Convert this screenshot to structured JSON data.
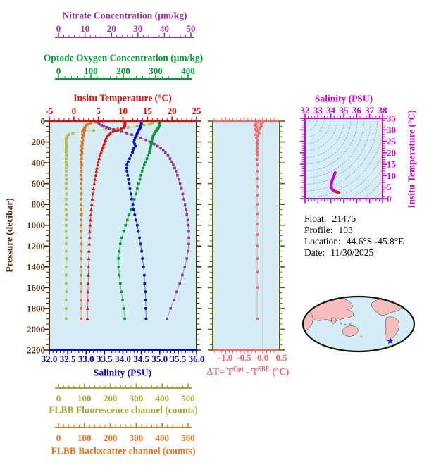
{
  "colors": {
    "nitrate": "#993399",
    "oxygen": "#009933",
    "temperature": "#EE0000",
    "pressure": "#4F2A0A",
    "salinity": "#0000CC",
    "delta": "#F06A6A",
    "delta_frame": "#5C5C00",
    "delta_zeroline": "#C8C8C8",
    "ts": "#CC00CC",
    "fluorescence": "#A6A632",
    "fluorescence_curve": "#B8B83A",
    "backscatter": "#E2711C",
    "plot_bg": "#D5EDF5",
    "isopycnal": "#8FA0AC",
    "land": "#F5BDBB",
    "ocean": "#D5EDF5",
    "map_outline": "#111111",
    "star": "#1414CC",
    "info_text": "#000000"
  },
  "axes": {
    "nitrate": {
      "title": "Nitrate Concentration (μm/kg)",
      "ticks": [
        "0",
        "10",
        "20",
        "30",
        "40",
        "50"
      ]
    },
    "oxygen": {
      "title": "Optode Oxygen Concentration (μm/kg)",
      "ticks": [
        "0",
        "100",
        "200",
        "300",
        "400"
      ]
    },
    "temperature": {
      "title": "Insitu Temperature (°C)",
      "ticks": [
        "-5",
        "0",
        "5",
        "10",
        "15",
        "20",
        "25"
      ]
    },
    "pressure": {
      "title": "Pressure (decibar)",
      "ticks": [
        "0",
        "200",
        "400",
        "600",
        "800",
        "1000",
        "1200",
        "1400",
        "1600",
        "1800",
        "2000",
        "2200"
      ]
    },
    "salinity": {
      "title": "Salinity (PSU)",
      "ticks": [
        "32.0",
        "32.5",
        "33.0",
        "33.5",
        "34.0",
        "34.5",
        "35.0",
        "35.5",
        "36.0"
      ]
    },
    "fluorescence": {
      "title": "FLBB Fluorescence channel (counts)",
      "ticks": [
        "0",
        "100",
        "200",
        "300",
        "400",
        "500"
      ]
    },
    "backscatter": {
      "title": "FLBB Backscatter channel (counts)",
      "ticks": [
        "0",
        "100",
        "200",
        "300",
        "400",
        "500"
      ]
    },
    "delta": {
      "ticks": [
        "-1.0",
        "-0.5",
        "0.0",
        "0.5"
      ],
      "title_parts": {
        "pre": "ΔT= T",
        "sup1": "Opt",
        "mid": " - T",
        "sup2": "SBE",
        "post": " (°C)"
      }
    },
    "ts_top": {
      "title": "Salinity (PSU)",
      "ticks": [
        "32",
        "33",
        "34",
        "35",
        "36",
        "37",
        "38"
      ]
    },
    "ts_right": {
      "title": "Insitu Temperature (°C)",
      "ticks": [
        "0",
        "5",
        "10",
        "15",
        "20",
        "25",
        "30",
        "35"
      ]
    }
  },
  "info": {
    "rows": [
      {
        "label": "Float:",
        "value": "21475"
      },
      {
        "label": "Profile:",
        "value": "103"
      },
      {
        "label": "Location:",
        "value": "44.6°S  -45.8°E"
      },
      {
        "label": "Date:",
        "value": "11/30/2025"
      }
    ]
  },
  "chart_data": [
    {
      "id": "main-profile",
      "type": "line",
      "ylabel": "Pressure (decibar)",
      "ylim": [
        0,
        2200
      ],
      "grid": false,
      "pressures": [
        0,
        10,
        20,
        30,
        40,
        50,
        60,
        70,
        80,
        90,
        100,
        115,
        130,
        145,
        160,
        180,
        200,
        220,
        240,
        260,
        280,
        300,
        330,
        360,
        390,
        420,
        450,
        480,
        520,
        560,
        600,
        650,
        700,
        750,
        800,
        850,
        900,
        950,
        1000,
        1060,
        1120,
        1180,
        1250,
        1320,
        1400,
        1480,
        1560,
        1640,
        1720,
        1800,
        1900
      ],
      "series": [
        {
          "name": "FLBB Fluorescence channel",
          "units": "counts",
          "color": "#B8B83A",
          "marker": "square",
          "xlim": [
            0,
            500
          ],
          "values": [
            348,
            352,
            349,
            340,
            322,
            298,
            268,
            232,
            192,
            150,
            112,
            80,
            65,
            60,
            58,
            57,
            57,
            57,
            58,
            57,
            57,
            57,
            58,
            57,
            57,
            58,
            57,
            57,
            57,
            58,
            57,
            57,
            58,
            57,
            57,
            57,
            58,
            57,
            57,
            57,
            58,
            57,
            57,
            58,
            57,
            57,
            57,
            58,
            57,
            57,
            57
          ]
        },
        {
          "name": "FLBB Backscatter channel",
          "units": "counts",
          "color": "#E2711C",
          "marker": "square",
          "xlim": [
            0,
            500
          ],
          "values": [
            182,
            158,
            140,
            130,
            126,
            124,
            121,
            119,
            117,
            120,
            115,
            118,
            113,
            116,
            112,
            114,
            111,
            113,
            110,
            112,
            109,
            111,
            109,
            110,
            108,
            110,
            108,
            109,
            108,
            109,
            108,
            108,
            109,
            108,
            108,
            108,
            109,
            108,
            108,
            108,
            108,
            109,
            108,
            108,
            108,
            108,
            108,
            108,
            108,
            108,
            108
          ]
        },
        {
          "name": "Nitrate Concentration",
          "units": "μm/kg",
          "color": "#993399",
          "marker": "square",
          "xlim": [
            0,
            50
          ],
          "values": [
            16.5,
            16.6,
            16.8,
            17.2,
            17.8,
            18.5,
            19.4,
            20.5,
            21.8,
            23.2,
            24.5,
            26.3,
            28,
            29.6,
            31,
            32.8,
            34.3,
            35.6,
            36.8,
            37.8,
            38.7,
            39.4,
            40.3,
            41,
            41.6,
            42.1,
            42.6,
            43,
            43.5,
            44,
            44.4,
            44.9,
            45.3,
            45.7,
            46.1,
            46.4,
            46.7,
            47,
            47.2,
            47.35,
            47.4,
            47.35,
            47.1,
            46.7,
            46,
            45.2,
            44.3,
            43.3,
            42.3,
            41.2,
            40
          ]
        },
        {
          "name": "Optode Oxygen Concentration",
          "units": "μm/kg",
          "color": "#009933",
          "marker": "square",
          "xlim": [
            0,
            400
          ],
          "values": [
            300,
            301,
            300,
            300,
            299,
            298,
            297,
            295,
            293,
            291,
            289,
            286,
            284,
            282,
            280,
            279,
            278,
            277,
            276,
            275,
            273,
            272,
            268,
            265,
            261,
            258,
            255,
            252,
            249,
            246,
            243,
            239,
            235,
            231,
            227,
            222,
            217,
            212,
            207,
            202,
            197,
            193,
            190,
            188,
            188,
            190,
            193,
            196,
            199,
            202,
            205
          ]
        },
        {
          "name": "Insitu Temperature",
          "units": "°C",
          "color": "#EE0000",
          "marker": "triangle",
          "xlim": [
            -5,
            25
          ],
          "values": [
            10.4,
            10.42,
            10.41,
            10.4,
            10.38,
            10.3,
            10.1,
            9.6,
            9.0,
            8.4,
            7.9,
            7.4,
            7.05,
            6.8,
            6.6,
            6.45,
            6.3,
            6.15,
            6.0,
            5.85,
            5.7,
            5.55,
            5.35,
            5.15,
            5.0,
            4.85,
            4.7,
            4.6,
            4.45,
            4.3,
            4.15,
            4.0,
            3.88,
            3.76,
            3.65,
            3.55,
            3.46,
            3.38,
            3.31,
            3.25,
            3.19,
            3.14,
            3.09,
            3.05,
            3.0,
            2.96,
            2.92,
            2.88,
            2.84,
            2.8,
            2.75
          ]
        },
        {
          "name": "Salinity",
          "units": "PSU",
          "color": "#0B0BCB",
          "marker": "circle",
          "xlim": [
            32,
            36
          ],
          "values": [
            34.5,
            34.5,
            34.5,
            34.5,
            34.49,
            34.48,
            34.47,
            34.46,
            34.44,
            34.42,
            34.41,
            34.39,
            34.37,
            34.35,
            34.33,
            34.31,
            34.3,
            34.32,
            34.34,
            34.3,
            34.27,
            34.26,
            34.22,
            34.18,
            34.14,
            34.11,
            34.1,
            34.11,
            34.13,
            34.15,
            34.17,
            34.19,
            34.22,
            34.24,
            34.27,
            34.29,
            34.32,
            34.35,
            34.39,
            34.42,
            34.45,
            34.48,
            34.51,
            34.53,
            34.56,
            34.58,
            34.59,
            34.61,
            34.62,
            34.62,
            34.63
          ]
        }
      ]
    },
    {
      "id": "delta-t",
      "type": "line",
      "xlabel": "ΔT= TOpt - TSBE (°C)",
      "xlim": [
        -1.34,
        0.45
      ],
      "ylim": [
        0,
        2200
      ],
      "color": "#F06A6A",
      "marker": "square",
      "pressures": [
        0,
        10,
        20,
        30,
        40,
        50,
        60,
        70,
        80,
        90,
        100,
        115,
        130,
        145,
        160,
        180,
        200,
        220,
        240,
        260,
        280,
        300,
        330,
        370,
        420,
        480,
        550,
        630,
        710,
        800,
        890,
        990,
        1090,
        1200,
        1320,
        1450,
        1600,
        1900
      ],
      "values": [
        -0.1,
        0.0,
        -0.18,
        -0.05,
        -0.22,
        -0.04,
        -0.17,
        -0.08,
        -0.2,
        -0.12,
        -0.17,
        -0.1,
        -0.19,
        -0.13,
        -0.17,
        -0.14,
        -0.16,
        -0.14,
        -0.16,
        -0.15,
        -0.16,
        -0.15,
        -0.15,
        -0.16,
        -0.15,
        -0.15,
        -0.15,
        -0.15,
        -0.15,
        -0.15,
        -0.15,
        -0.15,
        -0.15,
        -0.15,
        -0.15,
        -0.15,
        -0.15,
        -0.15
      ]
    },
    {
      "id": "ts-diagram",
      "type": "line",
      "xlabel": "Salinity (PSU)",
      "ylabel": "Insitu Temperature (°C)",
      "xlim": [
        32,
        38
      ],
      "ylim": [
        0,
        35
      ],
      "color": "#CC00CC",
      "tail_color": "#EE1111",
      "points": [
        [
          34.33,
          11.4
        ],
        [
          34.28,
          10.6
        ],
        [
          34.22,
          9.6
        ],
        [
          34.15,
          8.6
        ],
        [
          34.09,
          7.6
        ],
        [
          34.05,
          6.6
        ],
        [
          34.03,
          5.7
        ],
        [
          34.04,
          4.9
        ],
        [
          34.08,
          4.3
        ],
        [
          34.15,
          3.8
        ],
        [
          34.25,
          3.4
        ],
        [
          34.37,
          3.05
        ],
        [
          34.48,
          2.85
        ],
        [
          34.58,
          2.7
        ],
        [
          34.63,
          2.62
        ]
      ]
    }
  ]
}
